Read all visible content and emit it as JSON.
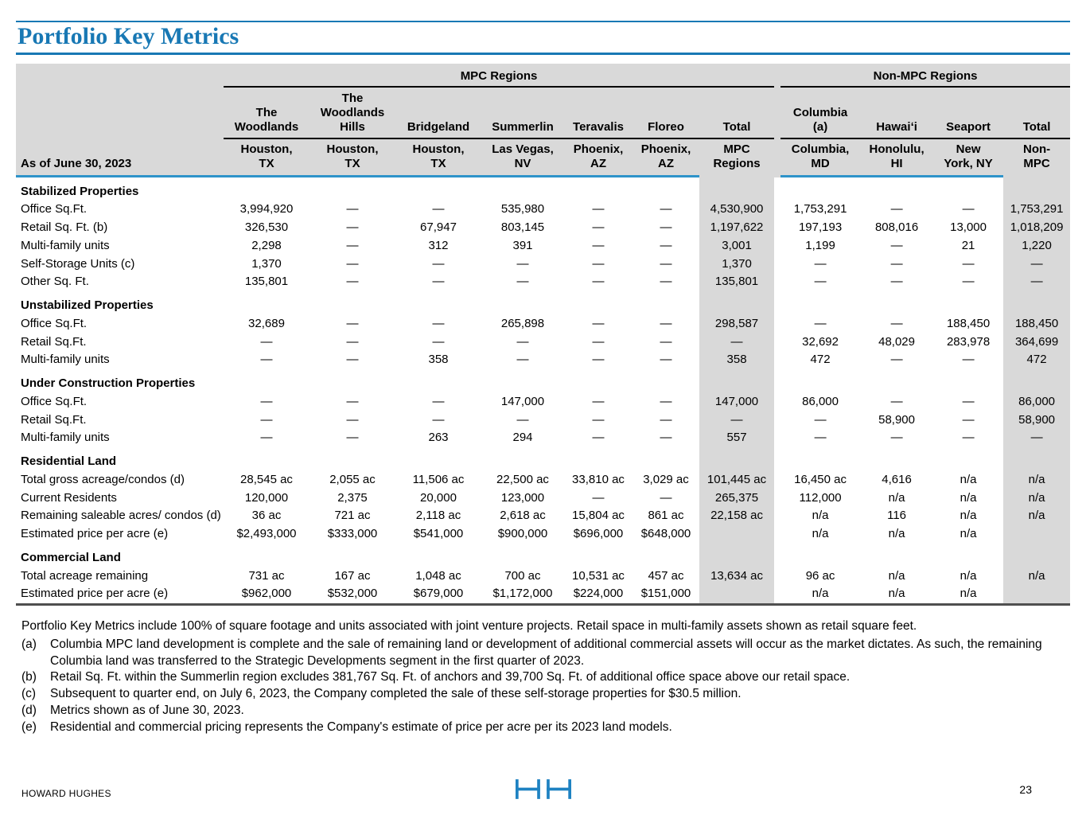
{
  "page": {
    "title": "Portfolio Key Metrics"
  },
  "table": {
    "as_of_label": "As of June 30, 2023",
    "group_headers": [
      {
        "label": "MPC Regions",
        "span": 7
      },
      {
        "label": "Non-MPC Regions",
        "span": 4
      }
    ],
    "columns": [
      {
        "name": "The\nWoodlands",
        "location": "Houston,\nTX",
        "shaded": false
      },
      {
        "name": "The\nWoodlands\nHills",
        "location": "Houston,\nTX",
        "shaded": false
      },
      {
        "name": "Bridgeland",
        "location": "Houston,\nTX",
        "shaded": false
      },
      {
        "name": "Summerlin",
        "location": "Las Vegas,\nNV",
        "shaded": false
      },
      {
        "name": "Teravalis",
        "location": "Phoenix,\nAZ",
        "shaded": false
      },
      {
        "name": "Floreo",
        "location": "Phoenix,\nAZ",
        "shaded": false
      },
      {
        "name": "Total",
        "location": "MPC\nRegions",
        "shaded": true
      },
      {
        "name": "Columbia\n(a)",
        "location": "Columbia,\nMD",
        "shaded": false
      },
      {
        "name": "Hawaiʻi",
        "location": "Honolulu,\nHI",
        "shaded": false
      },
      {
        "name": "Seaport",
        "location": "New\nYork, NY",
        "shaded": false
      },
      {
        "name": "Total",
        "location": "Non-\nMPC",
        "shaded": true
      }
    ],
    "sections": [
      {
        "title": "Stabilized Properties",
        "rows": [
          {
            "label": "Office Sq.Ft.",
            "values": [
              "3,994,920",
              "—",
              "—",
              "535,980",
              "—",
              "—",
              "4,530,900",
              "1,753,291",
              "—",
              "—",
              "1,753,291"
            ]
          },
          {
            "label": "Retail Sq. Ft. (b)",
            "values": [
              "326,530",
              "—",
              "67,947",
              "803,145",
              "—",
              "—",
              "1,197,622",
              "197,193",
              "808,016",
              "13,000",
              "1,018,209"
            ]
          },
          {
            "label": "Multi-family units",
            "values": [
              "2,298",
              "—",
              "312",
              "391",
              "—",
              "—",
              "3,001",
              "1,199",
              "—",
              "21",
              "1,220"
            ]
          },
          {
            "label": "Self-Storage Units (c)",
            "values": [
              "1,370",
              "—",
              "—",
              "—",
              "—",
              "—",
              "1,370",
              "—",
              "—",
              "—",
              "—"
            ]
          },
          {
            "label": "Other Sq. Ft.",
            "values": [
              "135,801",
              "—",
              "—",
              "—",
              "—",
              "—",
              "135,801",
              "—",
              "—",
              "—",
              "—"
            ]
          }
        ]
      },
      {
        "title": "Unstabilized Properties",
        "rows": [
          {
            "label": "Office Sq.Ft.",
            "values": [
              "32,689",
              "—",
              "—",
              "265,898",
              "—",
              "—",
              "298,587",
              "—",
              "—",
              "188,450",
              "188,450"
            ]
          },
          {
            "label": "Retail Sq.Ft.",
            "values": [
              "—",
              "—",
              "—",
              "—",
              "—",
              "—",
              "—",
              "32,692",
              "48,029",
              "283,978",
              "364,699"
            ]
          },
          {
            "label": "Multi-family units",
            "values": [
              "—",
              "—",
              "358",
              "—",
              "—",
              "—",
              "358",
              "472",
              "—",
              "—",
              "472"
            ]
          }
        ]
      },
      {
        "title": "Under Construction Properties",
        "rows": [
          {
            "label": "Office Sq.Ft.",
            "values": [
              "—",
              "—",
              "—",
              "147,000",
              "—",
              "—",
              "147,000",
              "86,000",
              "—",
              "—",
              "86,000"
            ]
          },
          {
            "label": "Retail Sq.Ft.",
            "values": [
              "—",
              "—",
              "—",
              "—",
              "—",
              "—",
              "—",
              "—",
              "58,900",
              "—",
              "58,900"
            ]
          },
          {
            "label": "Multi-family units",
            "values": [
              "—",
              "—",
              "263",
              "294",
              "—",
              "—",
              "557",
              "—",
              "—",
              "—",
              "—"
            ]
          }
        ]
      },
      {
        "title": "Residential Land",
        "rows": [
          {
            "label": "Total gross acreage/condos (d)",
            "values": [
              "28,545 ac",
              "2,055 ac",
              "11,506 ac",
              "22,500 ac",
              "33,810 ac",
              "3,029 ac",
              "101,445 ac",
              "16,450 ac",
              "4,616",
              "n/a",
              "n/a"
            ]
          },
          {
            "label": "Current Residents",
            "values": [
              "120,000",
              "2,375",
              "20,000",
              "123,000",
              "—",
              "—",
              "265,375",
              "112,000",
              "n/a",
              "n/a",
              "n/a"
            ]
          },
          {
            "label": "Remaining saleable acres/ condos (d)",
            "values": [
              "36 ac",
              "721 ac",
              "2,118 ac",
              "2,618 ac",
              "15,804 ac",
              "861 ac",
              "22,158 ac",
              "n/a",
              "116",
              "n/a",
              "n/a"
            ]
          },
          {
            "label": "Estimated price per acre (e)",
            "values": [
              "$2,493,000",
              "$333,000",
              "$541,000",
              "$900,000",
              "$696,000",
              "$648,000",
              "",
              "n/a",
              "n/a",
              "n/a",
              ""
            ]
          }
        ]
      },
      {
        "title": "Commercial Land",
        "rows": [
          {
            "label": "Total acreage remaining",
            "values": [
              "731 ac",
              "167 ac",
              "1,048 ac",
              "700 ac",
              "10,531 ac",
              "457 ac",
              "13,634 ac",
              "96 ac",
              "n/a",
              "n/a",
              "n/a"
            ]
          },
          {
            "label": "Estimated price per acre (e)",
            "values": [
              "$962,000",
              "$532,000",
              "$679,000",
              "$1,172,000",
              "$224,000",
              "$151,000",
              "",
              "n/a",
              "n/a",
              "n/a",
              ""
            ]
          }
        ]
      }
    ]
  },
  "footnotes": {
    "intro": "Portfolio Key Metrics include 100% of square footage and units associated with joint venture projects. Retail space in multi-family assets shown as retail square feet.",
    "items": [
      {
        "marker": "(a)",
        "text": "Columbia MPC land development is complete and the sale of remaining land or development of additional commercial assets will occur as the market dictates. As such, the remaining Columbia land was transferred to the Strategic Developments segment in the first quarter of 2023."
      },
      {
        "marker": "(b)",
        "text": "Retail Sq. Ft. within the Summerlin region excludes 381,767 Sq. Ft. of anchors and 39,700 Sq. Ft. of additional office space above our retail space."
      },
      {
        "marker": "(c)",
        "text": "Subsequent to quarter end, on July 6, 2023, the Company completed the sale of these self-storage properties for $30.5 million."
      },
      {
        "marker": "(d)",
        "text": "Metrics shown as of June 30, 2023."
      },
      {
        "marker": "(e)",
        "text": "Residential and commercial pricing represents the Company's estimate of price per acre per its 2023 land models."
      }
    ]
  },
  "footer": {
    "brand": "HOWARD HUGHES",
    "page_number": "23",
    "logo": "hh-logo",
    "accent_color": "#1878b4"
  }
}
